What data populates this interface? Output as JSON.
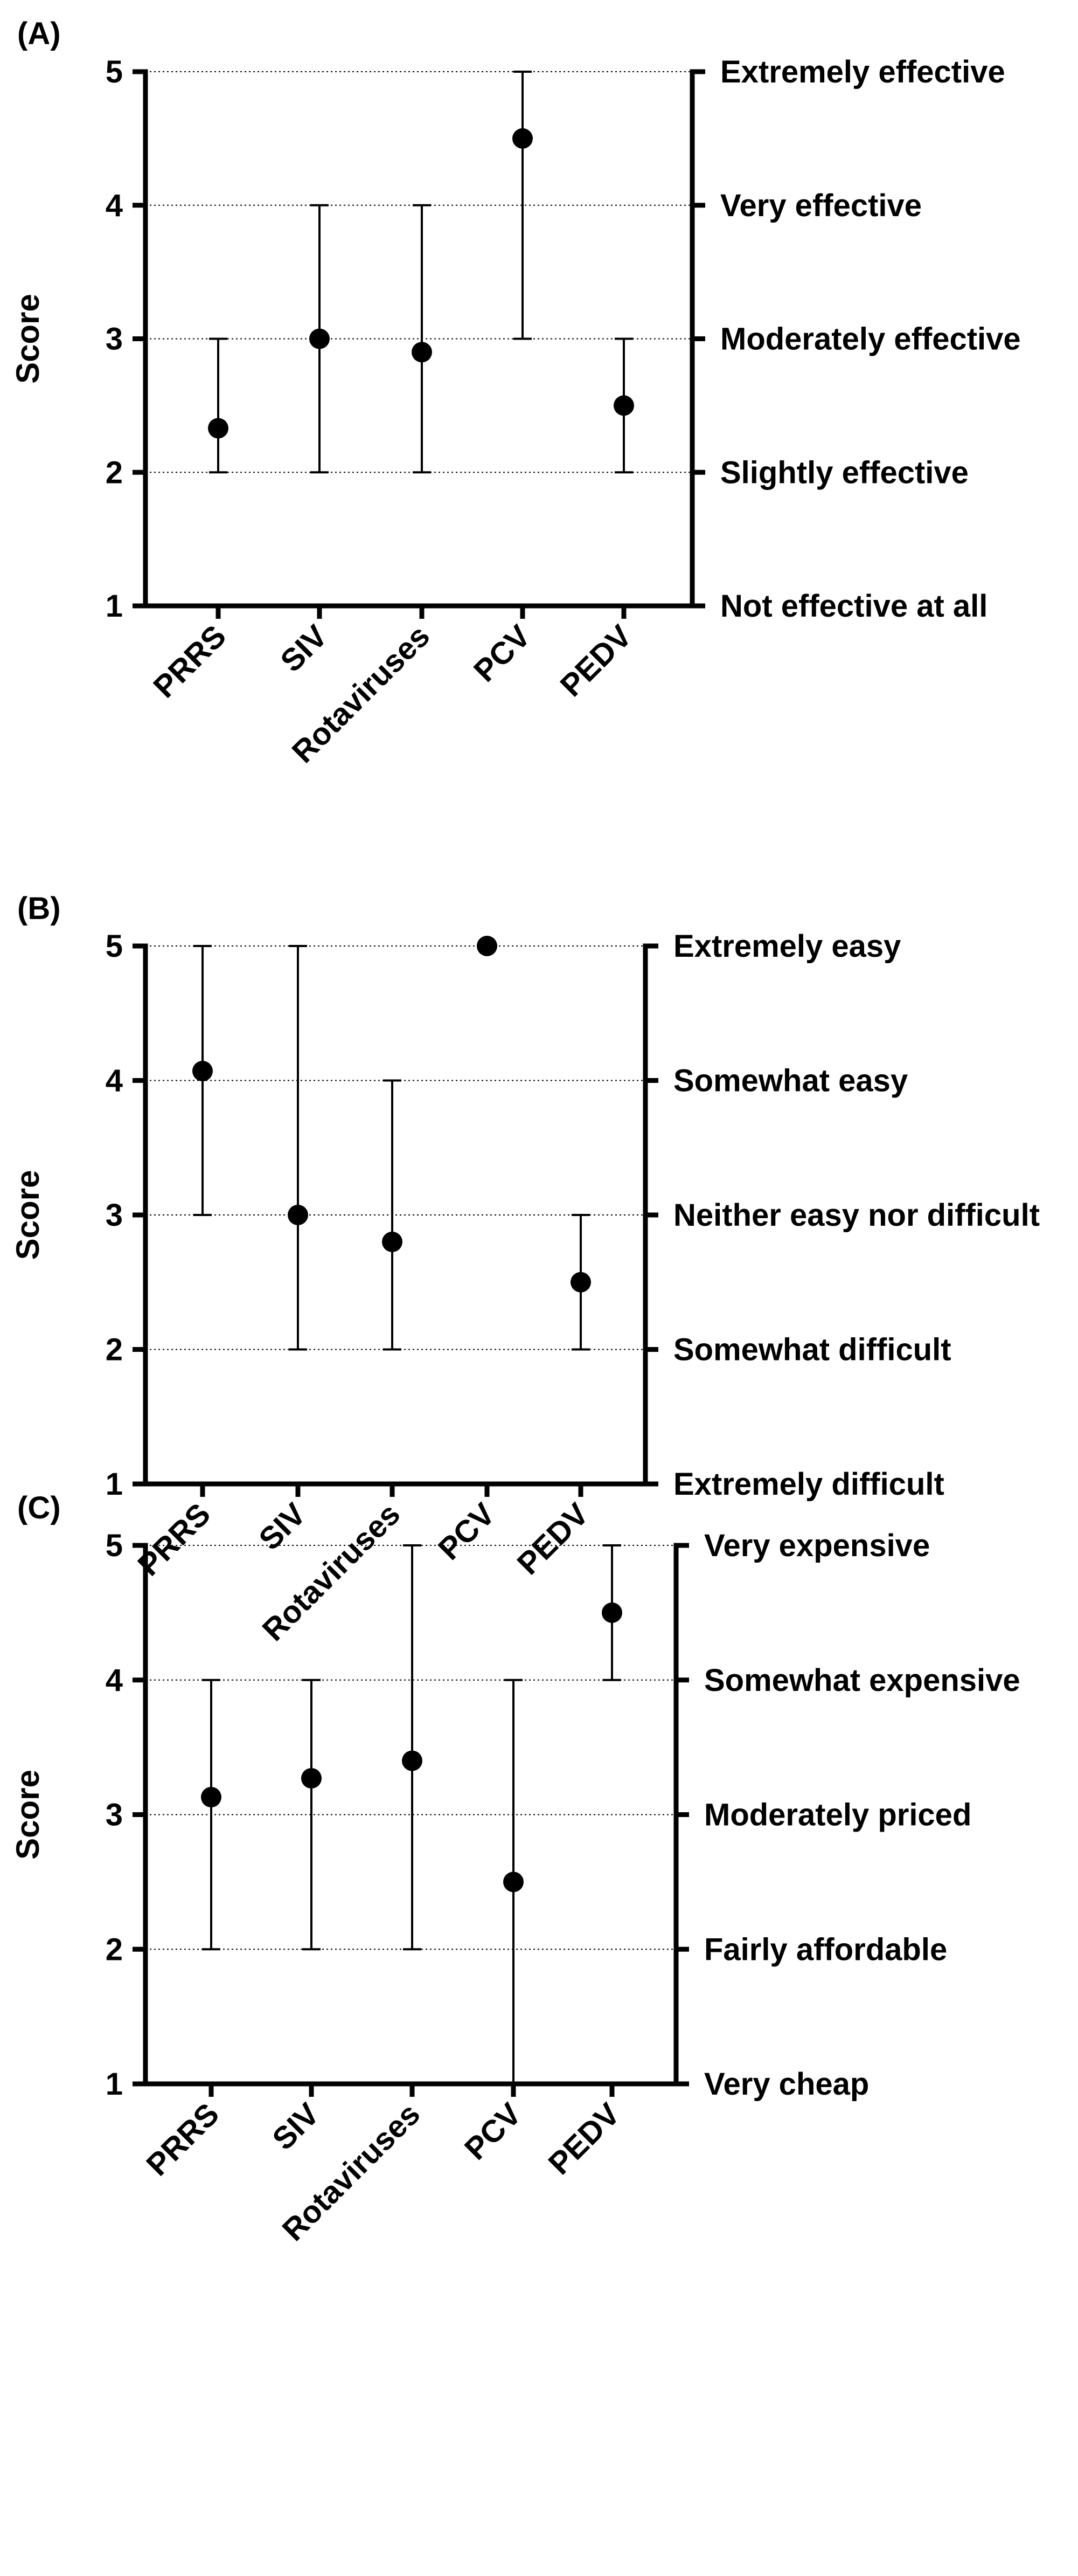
{
  "chart_data": [
    {
      "type": "scatter",
      "panel_label": "(A)",
      "ylabel": "Score",
      "ylim": [
        1,
        5
      ],
      "yticks": [
        1,
        2,
        3,
        4,
        5
      ],
      "right_tick_labels": [
        "Not effective at all",
        "Slightly effective",
        "Moderately effective",
        "Very effective",
        "Extremely effective"
      ],
      "categories": [
        "PRRS",
        "SIV",
        "Rotaviruses",
        "PCV",
        "PEDV"
      ],
      "values": [
        2.33,
        3.0,
        2.9,
        4.5,
        2.5
      ],
      "error_low": [
        2,
        2,
        2,
        3,
        2
      ],
      "error_high": [
        3,
        4,
        4,
        5,
        3
      ],
      "grid": true
    },
    {
      "type": "scatter",
      "panel_label": "(B)",
      "ylabel": "Score",
      "ylim": [
        1,
        5
      ],
      "yticks": [
        1,
        2,
        3,
        4,
        5
      ],
      "right_tick_labels": [
        "Extremely difficult",
        "Somewhat difficult",
        "Neither easy nor difficult",
        "Somewhat easy",
        "Extremely easy"
      ],
      "categories": [
        "PRRS",
        "SIV",
        "Rotaviruses",
        "PCV",
        "PEDV"
      ],
      "values": [
        4.07,
        3.0,
        2.8,
        5.0,
        2.5
      ],
      "error_low": [
        3,
        2,
        2,
        5,
        2
      ],
      "error_high": [
        5,
        5,
        4,
        5,
        3
      ],
      "grid": true
    },
    {
      "type": "scatter",
      "panel_label": "(C)",
      "ylabel": "Score",
      "ylim": [
        1,
        5
      ],
      "yticks": [
        1,
        2,
        3,
        4,
        5
      ],
      "right_tick_labels": [
        "Very cheap",
        "Fairly affordable",
        "Moderately priced",
        "Somewhat expensive",
        "Very expensive"
      ],
      "categories": [
        "PRRS",
        "SIV",
        "Rotaviruses",
        "PCV",
        "PEDV"
      ],
      "values": [
        3.13,
        3.27,
        3.4,
        2.5,
        4.5
      ],
      "error_low": [
        2,
        2,
        2,
        1,
        4
      ],
      "error_high": [
        4,
        4,
        5,
        4,
        5
      ],
      "grid": true
    }
  ]
}
